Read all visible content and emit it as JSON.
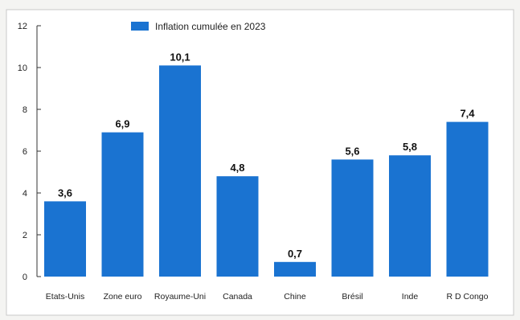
{
  "chart_data": {
    "type": "bar",
    "categories": [
      "Etats-Unis",
      "Zone euro",
      "Royaume-Uni",
      "Canada",
      "Chine",
      "Brésil",
      "Inde",
      "R D Congo"
    ],
    "series": [
      {
        "name": "Inflation cumulée en 2023",
        "values": [
          3.6,
          6.9,
          10.1,
          4.8,
          0.7,
          5.6,
          5.8,
          7.4
        ],
        "value_labels": [
          "3,6",
          "6,9",
          "10,1",
          "4,8",
          "0,7",
          "5,6",
          "5,8",
          "7,4"
        ],
        "color": "#1a73d1"
      }
    ],
    "ylim": [
      0,
      12
    ],
    "yticks": [
      0,
      2,
      4,
      6,
      8,
      10,
      12
    ],
    "grid": false,
    "legend_position": "top-center"
  }
}
